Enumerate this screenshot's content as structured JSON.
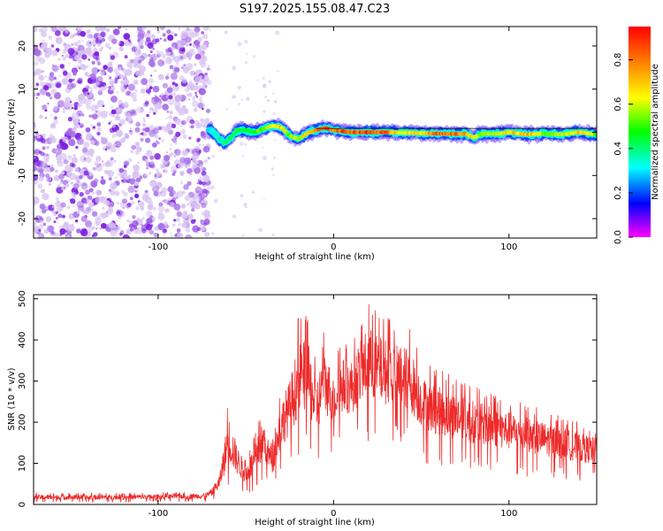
{
  "figure": {
    "title": "S197.2025.155.08.47.C23"
  },
  "chart_data": [
    {
      "type": "heatmap",
      "title": "S197.2025.155.08.47.C23",
      "xlabel": "Height of straight line (km)",
      "ylabel": "Frequency (Hz)",
      "xlim": [
        -171,
        150
      ],
      "ylim": [
        -24.5,
        24.5
      ],
      "xticks": [
        -100,
        0,
        100
      ],
      "yticks": [
        -20,
        -10,
        0,
        10,
        20
      ],
      "colorbar": {
        "label": "Normalized spectral amplitude",
        "range": [
          0,
          0.95
        ],
        "ticks": [
          0.0,
          0.2,
          0.4,
          0.6,
          0.8
        ]
      },
      "noise_region_x": [
        -171,
        -71
      ],
      "signal_band_x": [
        -71,
        150
      ],
      "ridge_frequency": [
        [
          -70,
          0.5
        ],
        [
          -65,
          -1.5
        ],
        [
          -62,
          -2.5
        ],
        [
          -58,
          -1.0
        ],
        [
          -55,
          0.5
        ],
        [
          -50,
          0.5
        ],
        [
          -45,
          0.0
        ],
        [
          -40,
          0.8
        ],
        [
          -35,
          1.5
        ],
        [
          -30,
          1.2
        ],
        [
          -25,
          -0.8
        ],
        [
          -20,
          -1.6
        ],
        [
          -15,
          -0.2
        ],
        [
          -10,
          0.5
        ],
        [
          -5,
          1.0
        ],
        [
          0,
          0.5
        ],
        [
          10,
          0.0
        ],
        [
          20,
          0.0
        ],
        [
          30,
          0.0
        ],
        [
          40,
          -0.1
        ],
        [
          50,
          -0.2
        ],
        [
          60,
          -0.3
        ],
        [
          70,
          -0.4
        ],
        [
          75,
          -0.3
        ],
        [
          80,
          -1.2
        ],
        [
          85,
          -0.3
        ],
        [
          90,
          -0.3
        ],
        [
          95,
          -0.3
        ],
        [
          100,
          0.0
        ],
        [
          110,
          -0.5
        ],
        [
          120,
          -0.3
        ],
        [
          130,
          -0.5
        ],
        [
          140,
          0.0
        ],
        [
          150,
          -0.5
        ]
      ],
      "ridge_amplitude": [
        [
          -70,
          0.35
        ],
        [
          -65,
          0.4
        ],
        [
          -60,
          0.45
        ],
        [
          -55,
          0.5
        ],
        [
          -50,
          0.5
        ],
        [
          -45,
          0.55
        ],
        [
          -40,
          0.6
        ],
        [
          -35,
          0.7
        ],
        [
          -30,
          0.75
        ],
        [
          -25,
          0.6
        ],
        [
          -20,
          0.65
        ],
        [
          -15,
          0.75
        ],
        [
          -10,
          0.85
        ],
        [
          -5,
          0.9
        ],
        [
          0,
          0.9
        ],
        [
          10,
          0.95
        ],
        [
          20,
          0.95
        ],
        [
          30,
          0.9
        ],
        [
          40,
          0.7
        ],
        [
          50,
          0.75
        ],
        [
          60,
          0.9
        ],
        [
          70,
          0.9
        ],
        [
          75,
          0.85
        ],
        [
          80,
          0.7
        ],
        [
          85,
          0.6
        ],
        [
          90,
          0.65
        ],
        [
          95,
          0.7
        ],
        [
          100,
          0.75
        ],
        [
          110,
          0.8
        ],
        [
          120,
          0.6
        ],
        [
          130,
          0.65
        ],
        [
          140,
          0.75
        ],
        [
          150,
          0.6
        ]
      ]
    },
    {
      "type": "line",
      "xlabel": "Height of straight line (km)",
      "ylabel": "SNR (10 * v/v)",
      "xlim": [
        -171,
        150
      ],
      "ylim": [
        0,
        510
      ],
      "xticks": [
        -100,
        0,
        100
      ],
      "yticks": [
        0,
        100,
        200,
        300,
        400,
        500
      ],
      "series": [
        {
          "color": "#ee2a2a",
          "envelope": {
            "x": [
              -171,
              -150,
              -120,
              -90,
              -75,
              -70,
              -65,
              -60,
              -55,
              -50,
              -45,
              -40,
              -35,
              -30,
              -25,
              -20,
              -15,
              -10,
              -5,
              0,
              5,
              10,
              15,
              20,
              25,
              30,
              35,
              40,
              45,
              50,
              55,
              60,
              70,
              80,
              90,
              100,
              110,
              120,
              130,
              140,
              150
            ],
            "upper": [
              28,
              28,
              28,
              30,
              32,
              40,
              85,
              260,
              170,
              110,
              170,
              245,
              150,
              290,
              350,
              460,
              465,
              350,
              430,
              360,
              405,
              395,
              450,
              500,
              470,
              460,
              455,
              450,
              420,
              360,
              340,
              330,
              310,
              290,
              275,
              260,
              245,
              230,
              215,
              200,
              185
            ],
            "lower": [
              6,
              6,
              6,
              8,
              8,
              10,
              20,
              50,
              40,
              30,
              40,
              60,
              45,
              90,
              110,
              130,
              150,
              110,
              150,
              140,
              160,
              160,
              170,
              180,
              170,
              170,
              160,
              160,
              150,
              130,
              120,
              115,
              105,
              100,
              95,
              90,
              85,
              80,
              75,
              70,
              70
            ]
          }
        }
      ]
    }
  ]
}
